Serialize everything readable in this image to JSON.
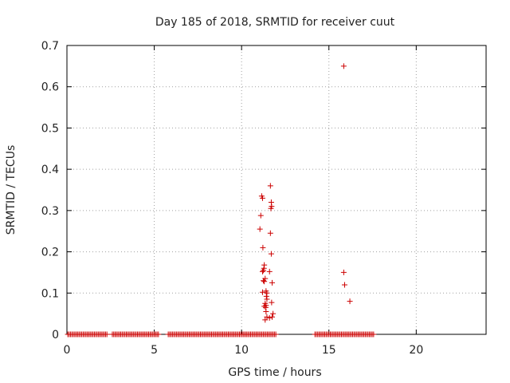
{
  "chart_data": {
    "type": "scatter",
    "title": "Day 185 of 2018, SRMTID for receiver cuut",
    "xlabel": "GPS time / hours",
    "ylabel": "SRMTID / TECUs",
    "xlim": [
      0,
      24
    ],
    "ylim": [
      0,
      0.7
    ],
    "xticks": [
      0,
      5,
      10,
      15,
      20
    ],
    "yticks": [
      0,
      0.1,
      0.2,
      0.3,
      0.4,
      0.5,
      0.6,
      0.7
    ],
    "xtick_labels": [
      "0",
      "5",
      "10",
      "15",
      "20"
    ],
    "ytick_labels": [
      "0",
      "0.1",
      "0.2",
      "0.3",
      "0.4",
      "0.5",
      "0.6",
      "0.7"
    ],
    "grid": true,
    "marker": "+",
    "color": "#cc0000",
    "zero_segments": [
      [
        0.05,
        2.3
      ],
      [
        2.6,
        5.3
      ],
      [
        5.8,
        12.0
      ],
      [
        14.2,
        17.6
      ]
    ],
    "zero_step_hours": 0.08,
    "points": [
      {
        "x": 11.15,
        "y": 0.335
      },
      {
        "x": 11.2,
        "y": 0.33
      },
      {
        "x": 11.1,
        "y": 0.288
      },
      {
        "x": 11.05,
        "y": 0.255
      },
      {
        "x": 11.22,
        "y": 0.21
      },
      {
        "x": 11.3,
        "y": 0.168
      },
      {
        "x": 11.28,
        "y": 0.16
      },
      {
        "x": 11.25,
        "y": 0.155
      },
      {
        "x": 11.2,
        "y": 0.152
      },
      {
        "x": 11.35,
        "y": 0.135
      },
      {
        "x": 11.25,
        "y": 0.13
      },
      {
        "x": 11.3,
        "y": 0.128
      },
      {
        "x": 11.4,
        "y": 0.105
      },
      {
        "x": 11.2,
        "y": 0.102
      },
      {
        "x": 11.45,
        "y": 0.1
      },
      {
        "x": 11.42,
        "y": 0.092
      },
      {
        "x": 11.45,
        "y": 0.085
      },
      {
        "x": 11.35,
        "y": 0.075
      },
      {
        "x": 11.4,
        "y": 0.07
      },
      {
        "x": 11.3,
        "y": 0.068
      },
      {
        "x": 11.38,
        "y": 0.065
      },
      {
        "x": 11.4,
        "y": 0.055
      },
      {
        "x": 11.45,
        "y": 0.042
      },
      {
        "x": 11.35,
        "y": 0.035
      },
      {
        "x": 11.65,
        "y": 0.36
      },
      {
        "x": 11.7,
        "y": 0.32
      },
      {
        "x": 11.72,
        "y": 0.31
      },
      {
        "x": 11.68,
        "y": 0.305
      },
      {
        "x": 11.65,
        "y": 0.245
      },
      {
        "x": 11.7,
        "y": 0.195
      },
      {
        "x": 11.6,
        "y": 0.152
      },
      {
        "x": 11.75,
        "y": 0.125
      },
      {
        "x": 11.72,
        "y": 0.077
      },
      {
        "x": 11.8,
        "y": 0.05
      },
      {
        "x": 11.75,
        "y": 0.042
      },
      {
        "x": 11.6,
        "y": 0.04
      },
      {
        "x": 15.85,
        "y": 0.65
      },
      {
        "x": 15.85,
        "y": 0.15
      },
      {
        "x": 15.9,
        "y": 0.12
      },
      {
        "x": 16.2,
        "y": 0.08
      }
    ]
  }
}
